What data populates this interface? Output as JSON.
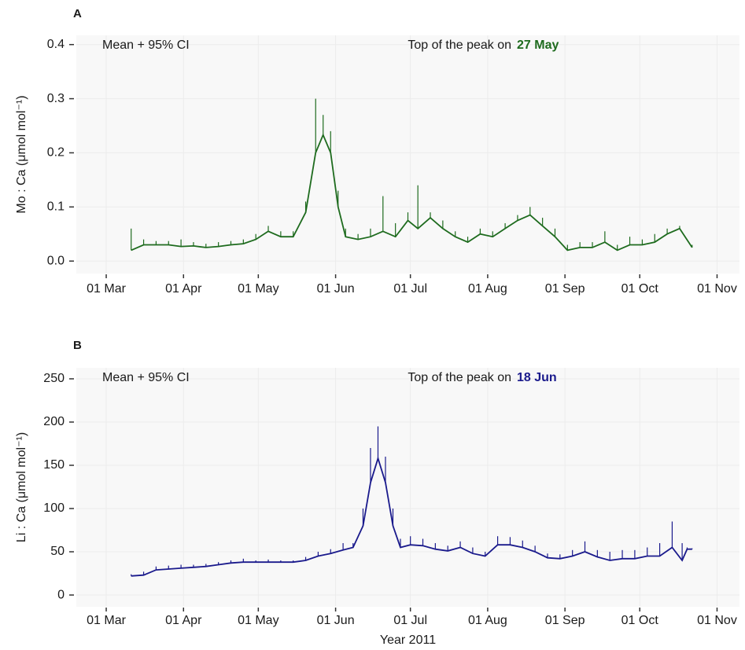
{
  "chart_data": [
    {
      "type": "line",
      "panel_label": "A",
      "annotation": "Mean + 95% CI",
      "peak_text": "Top of the peak on",
      "peak_date": "27 May",
      "y_label": "Mo : Ca (μmol mol⁻¹)",
      "color": "#1e6b1e",
      "grid": true,
      "x": [
        "2011-03-11",
        "2011-03-16",
        "2011-03-21",
        "2011-03-26",
        "2011-03-31",
        "2011-04-05",
        "2011-04-10",
        "2011-04-15",
        "2011-04-20",
        "2011-04-25",
        "2011-04-30",
        "2011-05-05",
        "2011-05-10",
        "2011-05-15",
        "2011-05-20",
        "2011-05-24",
        "2011-05-27",
        "2011-05-30",
        "2011-06-02",
        "2011-06-05",
        "2011-06-10",
        "2011-06-15",
        "2011-06-20",
        "2011-06-25",
        "2011-06-30",
        "2011-07-04",
        "2011-07-09",
        "2011-07-14",
        "2011-07-19",
        "2011-07-24",
        "2011-07-29",
        "2011-08-03",
        "2011-08-08",
        "2011-08-13",
        "2011-08-18",
        "2011-08-23",
        "2011-08-28",
        "2011-09-02",
        "2011-09-07",
        "2011-09-12",
        "2011-09-17",
        "2011-09-22",
        "2011-09-27",
        "2011-10-02",
        "2011-10-07",
        "2011-10-12",
        "2011-10-17",
        "2011-10-22"
      ],
      "values": [
        0.02,
        0.03,
        0.03,
        0.03,
        0.027,
        0.028,
        0.025,
        0.027,
        0.03,
        0.032,
        0.04,
        0.055,
        0.045,
        0.045,
        0.09,
        0.2,
        0.233,
        0.2,
        0.1,
        0.045,
        0.04,
        0.045,
        0.055,
        0.045,
        0.075,
        0.06,
        0.08,
        0.06,
        0.045,
        0.035,
        0.05,
        0.045,
        0.06,
        0.075,
        0.085,
        0.065,
        0.045,
        0.02,
        0.025,
        0.025,
        0.035,
        0.02,
        0.03,
        0.03,
        0.035,
        0.05,
        0.06,
        0.025
      ],
      "ci_upper": [
        0.06,
        0.04,
        0.037,
        0.037,
        0.04,
        0.035,
        0.032,
        0.035,
        0.037,
        0.04,
        0.05,
        0.065,
        0.055,
        0.055,
        0.11,
        0.3,
        0.27,
        0.24,
        0.13,
        0.06,
        0.05,
        0.06,
        0.12,
        0.07,
        0.09,
        0.14,
        0.09,
        0.075,
        0.055,
        0.045,
        0.06,
        0.055,
        0.07,
        0.085,
        0.1,
        0.08,
        0.06,
        0.03,
        0.035,
        0.035,
        0.055,
        0.03,
        0.045,
        0.04,
        0.05,
        0.06,
        0.065,
        0.03
      ],
      "xlim": [
        "2011-02-17",
        "2011-11-10"
      ],
      "xticks": [
        {
          "value": "2011-03-01",
          "label": "01 Mar"
        },
        {
          "value": "2011-04-01",
          "label": "01 Apr"
        },
        {
          "value": "2011-05-01",
          "label": "01 May"
        },
        {
          "value": "2011-06-01",
          "label": "01 Jun"
        },
        {
          "value": "2011-07-01",
          "label": "01 Jul"
        },
        {
          "value": "2011-08-01",
          "label": "01 Aug"
        },
        {
          "value": "2011-09-01",
          "label": "01 Sep"
        },
        {
          "value": "2011-10-01",
          "label": "01 Oct"
        },
        {
          "value": "2011-11-01",
          "label": "01 Nov"
        }
      ],
      "ylim": [
        -0.023,
        0.417
      ],
      "yticks": [
        {
          "value": 0,
          "label": "0.0"
        },
        0.1,
        0.2,
        0.3,
        0.4
      ]
    },
    {
      "type": "line",
      "panel_label": "B",
      "annotation": "Mean + 95% CI",
      "peak_text": "Top of the peak on",
      "peak_date": "18 Jun",
      "y_label": "Li : Ca (μmol mol⁻¹)",
      "x_label": "Year 2011",
      "color": "#1a1a8c",
      "grid": true,
      "x": [
        "2011-03-11",
        "2011-03-16",
        "2011-03-21",
        "2011-03-26",
        "2011-03-31",
        "2011-04-05",
        "2011-04-10",
        "2011-04-15",
        "2011-04-20",
        "2011-04-25",
        "2011-04-30",
        "2011-05-05",
        "2011-05-10",
        "2011-05-15",
        "2011-05-20",
        "2011-05-25",
        "2011-05-30",
        "2011-06-04",
        "2011-06-08",
        "2011-06-12",
        "2011-06-15",
        "2011-06-18",
        "2011-06-21",
        "2011-06-24",
        "2011-06-27",
        "2011-07-01",
        "2011-07-06",
        "2011-07-11",
        "2011-07-16",
        "2011-07-21",
        "2011-07-26",
        "2011-07-31",
        "2011-08-05",
        "2011-08-10",
        "2011-08-15",
        "2011-08-20",
        "2011-08-25",
        "2011-08-30",
        "2011-09-04",
        "2011-09-09",
        "2011-09-14",
        "2011-09-19",
        "2011-09-24",
        "2011-09-29",
        "2011-10-04",
        "2011-10-09",
        "2011-10-14",
        "2011-10-18",
        "2011-10-20",
        "2011-10-22"
      ],
      "values": [
        22,
        23,
        29,
        30,
        31,
        32,
        33,
        35,
        37,
        38,
        38,
        38,
        38,
        38,
        40,
        45,
        48,
        52,
        55,
        80,
        130,
        158,
        130,
        80,
        55,
        58,
        57,
        53,
        51,
        55,
        48,
        45,
        58,
        58,
        55,
        50,
        43,
        42,
        45,
        50,
        44,
        40,
        42,
        42,
        45,
        45,
        55,
        40,
        53,
        53
      ],
      "ci_upper": [
        24,
        27,
        33,
        34,
        35,
        35,
        36,
        38,
        40,
        42,
        40,
        41,
        40,
        40,
        44,
        50,
        53,
        60,
        60,
        100,
        170,
        195,
        160,
        100,
        65,
        68,
        65,
        60,
        57,
        62,
        55,
        50,
        68,
        67,
        63,
        57,
        48,
        47,
        52,
        62,
        52,
        50,
        52,
        52,
        55,
        60,
        85,
        60,
        55,
        54
      ],
      "xlim": [
        "2011-02-17",
        "2011-11-10"
      ],
      "xticks": [
        {
          "value": "2011-03-01",
          "label": "01 Mar"
        },
        {
          "value": "2011-04-01",
          "label": "01 Apr"
        },
        {
          "value": "2011-05-01",
          "label": "01 May"
        },
        {
          "value": "2011-06-01",
          "label": "01 Jun"
        },
        {
          "value": "2011-07-01",
          "label": "01 Jul"
        },
        {
          "value": "2011-08-01",
          "label": "01 Aug"
        },
        {
          "value": "2011-09-01",
          "label": "01 Sep"
        },
        {
          "value": "2011-10-01",
          "label": "01 Oct"
        },
        {
          "value": "2011-11-01",
          "label": "01 Nov"
        }
      ],
      "ylim": [
        -13.6,
        262.7
      ],
      "yticks": [
        0,
        50,
        100,
        150,
        200,
        250
      ]
    }
  ]
}
